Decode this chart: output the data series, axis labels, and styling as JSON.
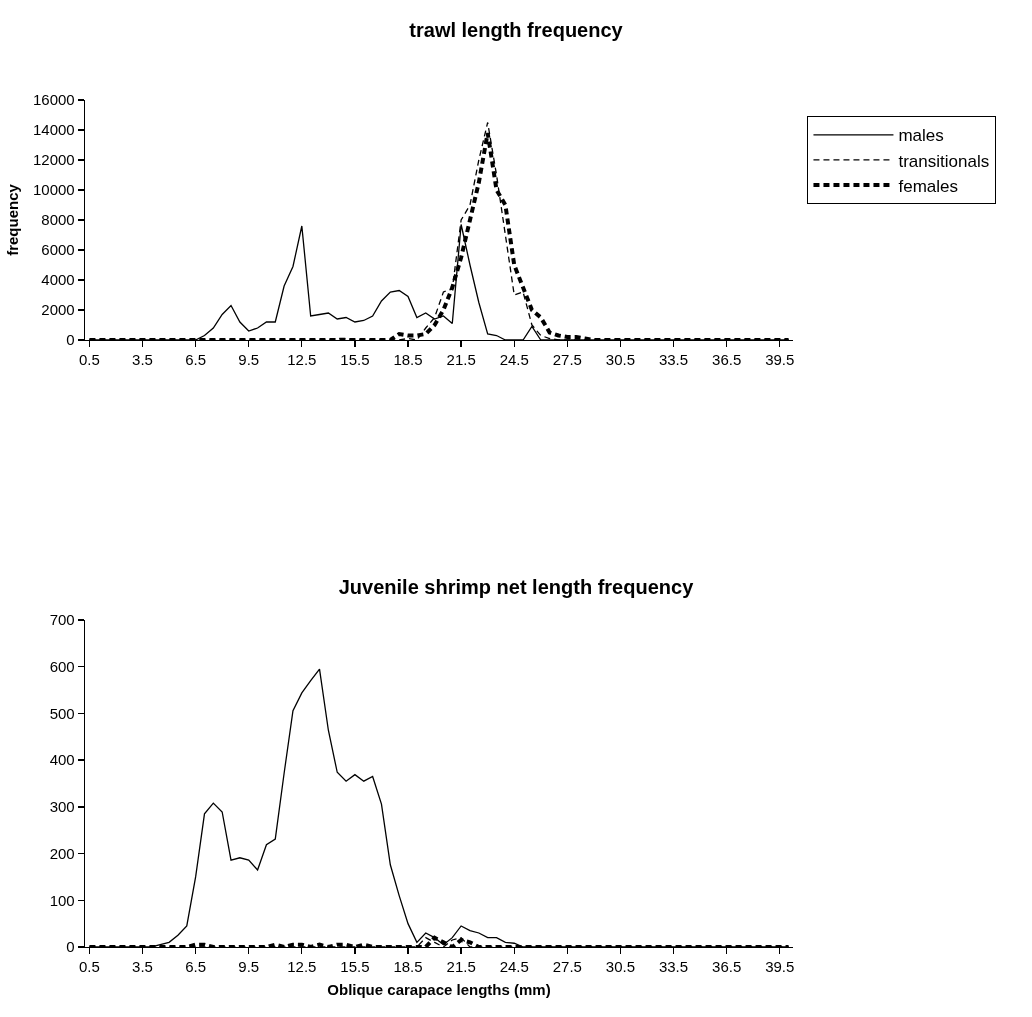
{
  "chart_data": [
    {
      "type": "line",
      "title": "trawl length frequency",
      "ylabel": "frequency",
      "x": [
        0.5,
        1,
        1.5,
        2,
        2.5,
        3,
        3.5,
        4,
        4.5,
        5,
        5.5,
        6,
        6.5,
        7,
        7.5,
        8,
        8.5,
        9,
        9.5,
        10,
        10.5,
        11,
        11.5,
        12,
        12.5,
        13,
        13.5,
        14,
        14.5,
        15,
        15.5,
        16,
        16.5,
        17,
        17.5,
        18,
        18.5,
        19,
        19.5,
        20,
        20.5,
        21,
        21.5,
        22,
        22.5,
        23,
        23.5,
        24,
        24.5,
        25,
        25.5,
        26,
        26.5,
        27,
        27.5,
        28,
        28.5,
        29,
        29.5,
        30,
        30.5,
        31,
        31.5,
        32,
        32.5,
        33,
        33.5,
        34,
        34.5,
        35,
        35.5,
        36,
        36.5,
        37,
        37.5,
        38,
        38.5,
        39,
        39.5,
        40
      ],
      "xlim": [
        0.25,
        40.25
      ],
      "xticks": [
        0.5,
        3.5,
        6.5,
        9.5,
        12.5,
        15.5,
        18.5,
        21.5,
        24.5,
        27.5,
        30.5,
        33.5,
        36.5,
        39.5
      ],
      "ylim": [
        0,
        16000
      ],
      "yticks": [
        0,
        2000,
        4000,
        6000,
        8000,
        10000,
        12000,
        14000,
        16000
      ],
      "grid": false,
      "legend": "right",
      "marker": "none",
      "series": [
        {
          "name": "males",
          "color": "#000000",
          "line_style": "solid",
          "values": [
            0,
            0,
            0,
            0,
            0,
            0,
            0,
            0,
            0,
            0,
            0,
            0,
            0,
            300,
            800,
            1700,
            2300,
            1200,
            600,
            800,
            1200,
            1200,
            3600,
            4900,
            7600,
            1600,
            1700,
            1800,
            1400,
            1500,
            1200,
            1300,
            1600,
            2600,
            3200,
            3300,
            2900,
            1500,
            1800,
            1400,
            1600,
            1100,
            7700,
            5000,
            2500,
            400,
            300,
            0,
            0,
            0,
            900,
            0,
            0,
            0,
            0,
            0,
            0,
            0,
            0,
            0,
            0,
            0,
            0,
            0,
            0,
            0,
            0,
            0,
            0,
            0,
            0,
            0,
            0,
            0,
            0,
            0,
            0,
            0,
            0,
            0
          ]
        },
        {
          "name": "transitionals",
          "color": "#000000",
          "line_style": "dashed",
          "values": [
            0,
            0,
            0,
            0,
            0,
            0,
            0,
            0,
            0,
            0,
            0,
            0,
            0,
            0,
            0,
            0,
            0,
            0,
            0,
            0,
            0,
            0,
            0,
            0,
            0,
            0,
            0,
            0,
            100,
            100,
            0,
            0,
            0,
            0,
            0,
            0,
            100,
            0,
            800,
            1500,
            3200,
            3400,
            8000,
            9000,
            12000,
            14500,
            11000,
            7000,
            3000,
            3200,
            1000,
            300,
            100,
            0,
            0,
            0,
            0,
            0,
            0,
            0,
            0,
            0,
            0,
            0,
            0,
            0,
            0,
            0,
            0,
            0,
            0,
            0,
            0,
            0,
            0,
            0,
            0,
            0,
            0,
            0
          ]
        },
        {
          "name": "females",
          "color": "#000000",
          "line_style": "dashed",
          "values": [
            0,
            0,
            0,
            0,
            0,
            0,
            0,
            0,
            0,
            0,
            0,
            0,
            0,
            0,
            0,
            0,
            0,
            0,
            0,
            0,
            0,
            0,
            0,
            0,
            0,
            0,
            0,
            0,
            0,
            0,
            0,
            0,
            0,
            0,
            0,
            400,
            300,
            300,
            400,
            1000,
            2000,
            3500,
            5500,
            8000,
            10500,
            13800,
            10000,
            9000,
            5000,
            3500,
            2000,
            1500,
            500,
            300,
            200,
            200,
            100,
            0,
            0,
            0,
            0,
            0,
            0,
            0,
            0,
            0,
            0,
            0,
            0,
            0,
            0,
            0,
            0,
            0,
            0,
            0,
            0,
            0,
            0,
            0
          ]
        }
      ]
    },
    {
      "type": "line",
      "title": "Juvenile shrimp net length frequency",
      "xlabel": "Oblique carapace lengths (mm)",
      "x": [
        0.5,
        1,
        1.5,
        2,
        2.5,
        3,
        3.5,
        4,
        4.5,
        5,
        5.5,
        6,
        6.5,
        7,
        7.5,
        8,
        8.5,
        9,
        9.5,
        10,
        10.5,
        11,
        11.5,
        12,
        12.5,
        13,
        13.5,
        14,
        14.5,
        15,
        15.5,
        16,
        16.5,
        17,
        17.5,
        18,
        18.5,
        19,
        19.5,
        20,
        20.5,
        21,
        21.5,
        22,
        22.5,
        23,
        23.5,
        24,
        24.5,
        25,
        25.5,
        26,
        26.5,
        27,
        27.5,
        28,
        28.5,
        29,
        29.5,
        30,
        30.5,
        31,
        31.5,
        32,
        32.5,
        33,
        33.5,
        34,
        34.5,
        35,
        35.5,
        36,
        36.5,
        37,
        37.5,
        38,
        38.5,
        39,
        39.5,
        40
      ],
      "xlim": [
        0.25,
        40.25
      ],
      "xticks": [
        0.5,
        3.5,
        6.5,
        9.5,
        12.5,
        15.5,
        18.5,
        21.5,
        24.5,
        27.5,
        30.5,
        33.5,
        36.5,
        39.5
      ],
      "ylim": [
        0,
        700
      ],
      "yticks": [
        0,
        100,
        200,
        300,
        400,
        500,
        600,
        700
      ],
      "grid": false,
      "legend": false,
      "marker": "none",
      "series": [
        {
          "color": "#000000",
          "line_style": "solid",
          "values": [
            0,
            0,
            0,
            0,
            0,
            0,
            0,
            0,
            5,
            10,
            25,
            45,
            150,
            285,
            308,
            289,
            186,
            191,
            186,
            165,
            219,
            231,
            372,
            506,
            544,
            570,
            595,
            464,
            374,
            355,
            369,
            355,
            365,
            306,
            176,
            110,
            50,
            10,
            30,
            20,
            5,
            20,
            45,
            35,
            30,
            20,
            20,
            10,
            8,
            0,
            0,
            0,
            0,
            0,
            0,
            0,
            0,
            0,
            0,
            0,
            0,
            0,
            0,
            0,
            0,
            0,
            0,
            0,
            0,
            0,
            0,
            0,
            0,
            0,
            0,
            0,
            0,
            0,
            0,
            0
          ]
        },
        {
          "color": "#000000",
          "line_style": "dashed",
          "values": [
            0,
            0,
            0,
            0,
            0,
            0,
            0,
            0,
            0,
            0,
            0,
            0,
            0,
            0,
            0,
            0,
            0,
            0,
            0,
            0,
            0,
            0,
            0,
            0,
            0,
            0,
            0,
            0,
            0,
            0,
            0,
            0,
            0,
            0,
            0,
            0,
            0,
            0,
            20,
            10,
            0,
            15,
            20,
            0,
            0,
            0,
            0,
            0,
            0,
            0,
            0,
            0,
            0,
            0,
            0,
            0,
            0,
            0,
            0,
            0,
            0,
            0,
            0,
            0,
            0,
            0,
            0,
            0,
            0,
            0,
            0,
            0,
            0,
            0,
            0,
            0,
            0,
            0,
            0,
            0
          ]
        },
        {
          "color": "#000000",
          "line_style": "dashed",
          "values": [
            0,
            0,
            0,
            0,
            0,
            0,
            0,
            0,
            0,
            0,
            0,
            0,
            5,
            5,
            0,
            0,
            0,
            0,
            0,
            0,
            0,
            5,
            0,
            5,
            5,
            0,
            5,
            0,
            5,
            5,
            0,
            5,
            0,
            0,
            0,
            0,
            0,
            0,
            0,
            20,
            10,
            0,
            15,
            10,
            0,
            0,
            0,
            0,
            0,
            0,
            0,
            0,
            0,
            0,
            0,
            0,
            0,
            0,
            0,
            0,
            0,
            0,
            0,
            0,
            0,
            0,
            0,
            0,
            0,
            0,
            0,
            0,
            0,
            0,
            0,
            0,
            0,
            0,
            0,
            0
          ]
        }
      ]
    }
  ]
}
